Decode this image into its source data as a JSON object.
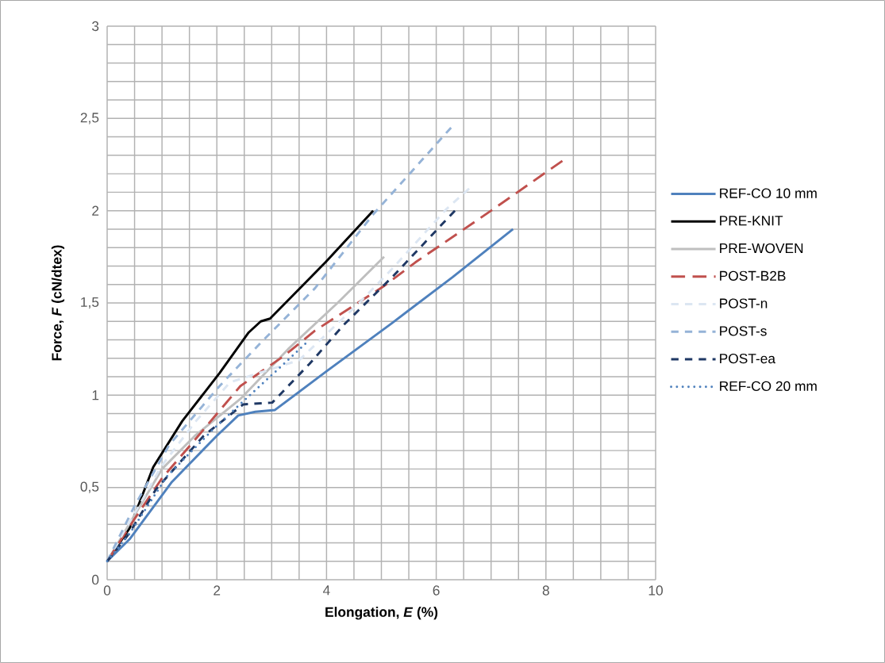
{
  "chart_data": {
    "type": "line",
    "xlabel": "Elongation, *E* (%)",
    "ylabel": "Force, *F* (cN/dtex)",
    "xlim": [
      0,
      10
    ],
    "ylim": [
      0,
      3
    ],
    "xticks": [
      0,
      2,
      4,
      6,
      8,
      10
    ],
    "yticks": [
      0,
      {
        "value": 0.5,
        "label": "0,5"
      },
      1,
      {
        "value": 1.5,
        "label": "1,5"
      },
      2,
      {
        "value": 2.5,
        "label": "2,5"
      },
      3
    ],
    "grid": true,
    "legend": "right",
    "marker": "none",
    "series": [
      {
        "name": "REF-CO 10 mm",
        "color": "#4f81bd",
        "line_style": "solid",
        "x": [
          0,
          0.41,
          1.18,
          2.0,
          2.39,
          2.7,
          3.06,
          4.0,
          5.19,
          6.3,
          7.4
        ],
        "values": [
          0.1,
          0.22,
          0.53,
          0.78,
          0.89,
          0.91,
          0.92,
          1.13,
          1.39,
          1.64,
          1.9
        ]
      },
      {
        "name": "PRE-KNIT",
        "color": "#000000",
        "line_style": "solid",
        "x": [
          0,
          0.41,
          0.84,
          1.37,
          2.05,
          2.58,
          2.8,
          2.97,
          3.98,
          4.85
        ],
        "values": [
          0.1,
          0.28,
          0.61,
          0.86,
          1.12,
          1.34,
          1.4,
          1.415,
          1.72,
          2.0
        ]
      },
      {
        "name": "PRE-WOVEN",
        "color": "#bfbfbf",
        "line_style": "solid",
        "x": [
          0,
          0.5,
          1.0,
          1.6,
          2.43,
          3.3,
          4.2,
          5.05
        ],
        "values": [
          0.1,
          0.35,
          0.6,
          0.78,
          0.98,
          1.25,
          1.5,
          1.75
        ]
      },
      {
        "name": "POST-B2B",
        "color": "#c0504d",
        "line_style": "longdashed",
        "x": [
          0,
          0.5,
          1.0,
          1.52,
          2.43,
          3.21,
          3.79,
          5.04,
          5.62,
          7.0,
          8.3
        ],
        "values": [
          0.1,
          0.33,
          0.55,
          0.73,
          1.05,
          1.21,
          1.35,
          1.59,
          1.72,
          2.0,
          2.27
        ]
      },
      {
        "name": "POST-n",
        "color": "#dce6f2",
        "line_style": "dashed",
        "x": [
          0,
          0.5,
          1.0,
          1.62,
          2.24,
          3.5,
          4.56,
          5.18,
          6.19,
          6.6
        ],
        "values": [
          0.1,
          0.36,
          0.62,
          0.86,
          1.07,
          1.19,
          1.49,
          1.68,
          2.01,
          2.12
        ]
      },
      {
        "name": "POST-s",
        "color": "#95b3d7",
        "line_style": "dashed",
        "x": [
          0,
          0.5,
          1.13,
          2.05,
          2.82,
          3.79,
          4.85,
          6.27
        ],
        "values": [
          0.1,
          0.4,
          0.73,
          1.05,
          1.29,
          1.58,
          1.98,
          2.45
        ]
      },
      {
        "name": "POST-ea",
        "color": "#1f3864",
        "line_style": "dashed",
        "x": [
          0,
          0.4,
          0.89,
          1.76,
          2.48,
          3.01,
          3.69,
          4.31,
          5.23,
          6.34
        ],
        "values": [
          0.1,
          0.25,
          0.49,
          0.78,
          0.95,
          0.96,
          1.17,
          1.38,
          1.65,
          2.0
        ]
      },
      {
        "name": "REF-CO 20 mm",
        "color": "#4f81bd",
        "line_style": "dotted",
        "x": [
          0,
          0.41,
          1.09,
          1.95,
          2.53,
          3.26,
          3.69
        ],
        "values": [
          0.1,
          0.25,
          0.56,
          0.82,
          0.98,
          1.18,
          1.3
        ]
      }
    ]
  }
}
